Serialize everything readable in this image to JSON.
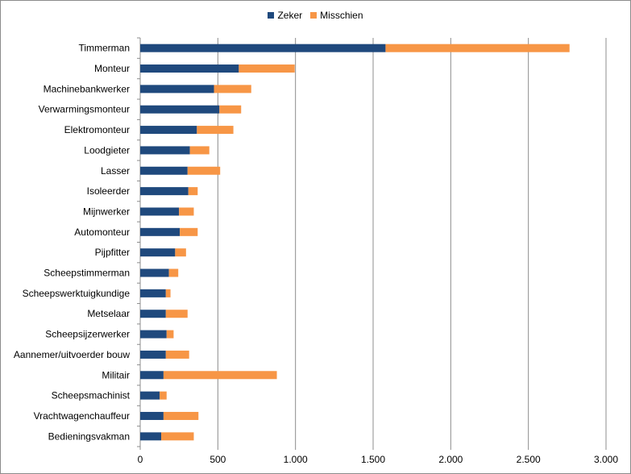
{
  "chart_data": {
    "type": "bar",
    "orientation": "horizontal",
    "stacked": true,
    "categories": [
      "Timmerman",
      "Monteur",
      "Machinebankwerker",
      "Verwarmingsmonteur",
      "Elektromonteur",
      "Loodgieter",
      "Lasser",
      "Isoleerder",
      "Mijnwerker",
      "Automonteur",
      "Pijpfitter",
      "Scheepstimmerman",
      "Scheepswerktuigkundige",
      "Metselaar",
      "Scheepsijzerwerker",
      "Aannemer/uitvoerder bouw",
      "Militair",
      "Scheepsmachinist",
      "Vrachtwagenchauffeur",
      "Bedieningsvakman"
    ],
    "series": [
      {
        "name": "Zeker",
        "color": "#1f497d",
        "values": [
          1580,
          635,
          475,
          510,
          365,
          320,
          305,
          310,
          250,
          255,
          225,
          185,
          165,
          165,
          170,
          165,
          150,
          125,
          150,
          135
        ]
      },
      {
        "name": "Misschien",
        "color": "#f79646",
        "values": [
          1185,
          360,
          240,
          140,
          235,
          125,
          210,
          60,
          95,
          115,
          70,
          60,
          30,
          140,
          45,
          150,
          730,
          45,
          225,
          210
        ]
      }
    ],
    "xlim": [
      0,
      3000
    ],
    "xticks": [
      "0",
      "500",
      "1.000",
      "1.500",
      "2.000",
      "2.500",
      "3.000"
    ],
    "grid": "vertical",
    "legend_position": "top",
    "title": "",
    "xlabel": "",
    "ylabel": ""
  }
}
